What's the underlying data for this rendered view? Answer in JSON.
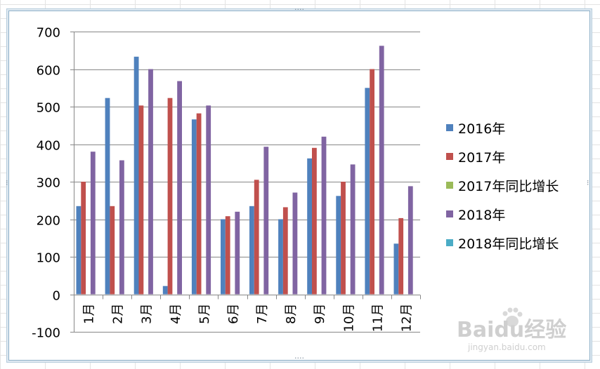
{
  "chart_data": {
    "type": "bar",
    "title": "",
    "xlabel": "",
    "ylabel": "",
    "ylim": [
      -100,
      700
    ],
    "yticks": [
      -100,
      0,
      100,
      200,
      300,
      400,
      500,
      600,
      700
    ],
    "grid": true,
    "legend_position": "right",
    "categories": [
      "1月",
      "2月",
      "3月",
      "4月",
      "5月",
      "6月",
      "7月",
      "8月",
      "9月",
      "10月",
      "11月",
      "12月"
    ],
    "series": [
      {
        "name": "2016年",
        "color": "#4f81bd",
        "values": [
          235,
          523,
          633,
          22,
          466,
          200,
          235,
          200,
          362,
          262,
          550,
          135
        ]
      },
      {
        "name": "2017年",
        "color": "#c0504d",
        "values": [
          300,
          235,
          503,
          523,
          482,
          208,
          305,
          232,
          390,
          300,
          600,
          203
        ]
      },
      {
        "name": "2017年同比增长",
        "color": "#9bbb59",
        "values": [
          0,
          0,
          0,
          0,
          0,
          0,
          0,
          0,
          0,
          0,
          0,
          0
        ]
      },
      {
        "name": "2018年",
        "color": "#8064a2",
        "values": [
          380,
          357,
          600,
          568,
          503,
          220,
          393,
          271,
          420,
          346,
          662,
          288
        ]
      },
      {
        "name": "2018年同比增长",
        "color": "#4bacc6",
        "values": [
          0,
          0,
          0,
          0,
          0,
          0,
          0,
          0,
          0,
          0,
          0,
          0
        ]
      }
    ]
  },
  "watermark": {
    "brand": "Baidu经验",
    "url": "jingyan.baidu.com",
    "paw_icon": "baidu-paw-icon"
  },
  "frame_handles": {
    "glyph": "····",
    "side_glyph": "⁝"
  }
}
